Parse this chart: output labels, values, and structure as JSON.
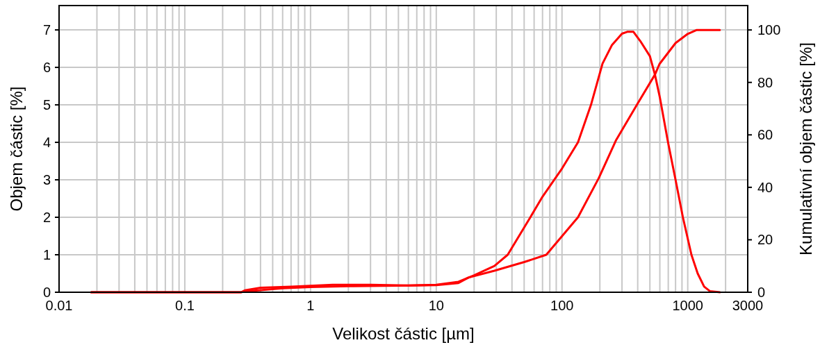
{
  "chart_data": {
    "type": "line",
    "xlabel": "Velikost částic [µm]",
    "ylabel": "Objem částic [%]",
    "y2label": "Kumulativní objem částic [%]",
    "log": "x",
    "grid": true,
    "line_style": "solid",
    "marker": "none",
    "xlim": [
      0.01,
      3000
    ],
    "ylim": [
      0,
      7.65
    ],
    "y2lim": [
      0,
      109.3
    ],
    "xticks": [
      0.01,
      {
        "value": 0.02,
        "label": null
      },
      {
        "value": 0.03,
        "label": null
      },
      {
        "value": 0.04,
        "label": null
      },
      {
        "value": 0.05,
        "label": null
      },
      {
        "value": 0.06,
        "label": null
      },
      {
        "value": 0.07,
        "label": null
      },
      {
        "value": 0.08,
        "label": null
      },
      {
        "value": 0.09,
        "label": null
      },
      0.1,
      {
        "value": 0.2,
        "label": null
      },
      {
        "value": 0.3,
        "label": null
      },
      {
        "value": 0.4,
        "label": null
      },
      {
        "value": 0.5,
        "label": null
      },
      {
        "value": 0.6,
        "label": null
      },
      {
        "value": 0.7,
        "label": null
      },
      {
        "value": 0.8,
        "label": null
      },
      {
        "value": 0.9,
        "label": null
      },
      1,
      {
        "value": 2,
        "label": null
      },
      {
        "value": 3,
        "label": null
      },
      {
        "value": 4,
        "label": null
      },
      {
        "value": 5,
        "label": null
      },
      {
        "value": 6,
        "label": null
      },
      {
        "value": 7,
        "label": null
      },
      {
        "value": 8,
        "label": null
      },
      {
        "value": 9,
        "label": null
      },
      10,
      {
        "value": 20,
        "label": null
      },
      {
        "value": 30,
        "label": null
      },
      {
        "value": 40,
        "label": null
      },
      {
        "value": 50,
        "label": null
      },
      {
        "value": 60,
        "label": null
      },
      {
        "value": 70,
        "label": null
      },
      {
        "value": 80,
        "label": null
      },
      {
        "value": 90,
        "label": null
      },
      100,
      {
        "value": 200,
        "label": null
      },
      {
        "value": 300,
        "label": null
      },
      {
        "value": 400,
        "label": null
      },
      {
        "value": 500,
        "label": null
      },
      {
        "value": 600,
        "label": null
      },
      {
        "value": 700,
        "label": null
      },
      {
        "value": 800,
        "label": null
      },
      {
        "value": 900,
        "label": null
      },
      1000,
      {
        "value": 2000,
        "label": null
      },
      3000
    ],
    "yticks": [
      0,
      1,
      2,
      3,
      4,
      5,
      6,
      7
    ],
    "y2ticks": [
      0,
      20,
      40,
      60,
      80,
      100
    ],
    "series": [
      {
        "color": "#ff0000",
        "x": [
          0.018,
          0.28,
          0.3,
          0.4,
          0.7,
          1.5,
          3,
          6,
          10,
          15,
          20,
          29,
          37,
          56,
          70,
          100,
          134,
          170,
          210,
          250,
          300,
          330,
          370,
          420,
          500,
          549,
          600,
          697,
          800,
          915,
          1070,
          1200,
          1350,
          1500,
          1800
        ],
        "values": [
          0,
          0,
          0.05,
          0.12,
          0.15,
          0.2,
          0.2,
          0.18,
          0.2,
          0.28,
          0.45,
          0.7,
          1.0,
          2.0,
          2.55,
          3.3,
          4.0,
          5.0,
          6.1,
          6.6,
          6.9,
          6.95,
          6.95,
          6.7,
          6.3,
          5.8,
          5.2,
          4.0,
          3.0,
          2.0,
          1.0,
          0.5,
          0.15,
          0.03,
          0
        ]
      },
      {
        "color": "#ff0000",
        "axis": "y2",
        "x": [
          0.018,
          0.28,
          0.3,
          0.4,
          0.6,
          1,
          2,
          5,
          10,
          15,
          18,
          29,
          50,
          75,
          134,
          196,
          268,
          400,
          549,
          596,
          800,
          1000,
          1180,
          1800
        ],
        "values": [
          0,
          0,
          0.3,
          0.8,
          1.5,
          2.0,
          2.3,
          2.5,
          2.7,
          3.5,
          5.6,
          8.2,
          11.5,
          14.3,
          28.6,
          43.5,
          57.8,
          72,
          83,
          87,
          95,
          98.5,
          100,
          100
        ]
      }
    ]
  }
}
